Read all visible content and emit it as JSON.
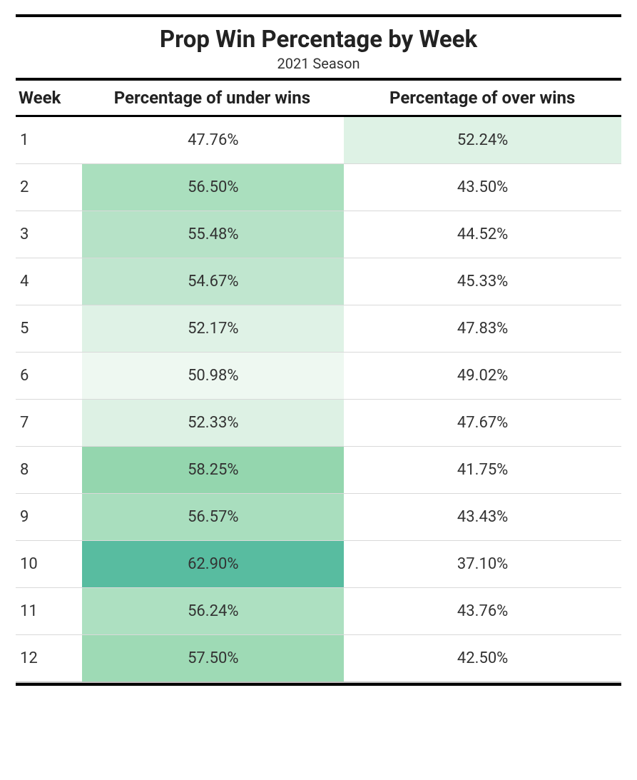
{
  "title": "Prop Win Percentage by Week",
  "subtitle": "2021 Season",
  "columns": {
    "week": "Week",
    "under": "Percentage of under wins",
    "over": "Percentage of over wins"
  },
  "heat_palette_note": "cells shaded green when >50%, deeper teal as value rises",
  "colors": {
    "text": "#333333",
    "border_strong": "#000000",
    "border_row": "#d9d9d9",
    "border_bottom": "#bdbdbd",
    "background": "#ffffff"
  },
  "cell_colors_sampled": {
    "47.76": "#ffffff",
    "50.98": "#eef8f1",
    "52.17": "#dff2e6",
    "52.24": "#def2e5",
    "52.33": "#ddf1e4",
    "54.67": "#c0e6cf",
    "55.48": "#b6e2c7",
    "56.24": "#ade0c1",
    "56.50": "#aadfbe",
    "56.57": "#a9debe",
    "57.50": "#9edab5",
    "58.25": "#94d6ae",
    "62.90": "#58bca0"
  },
  "rows": [
    {
      "week": "1",
      "under": "47.76%",
      "over": "52.24%",
      "under_bg": "#ffffff",
      "over_bg": "#def2e5"
    },
    {
      "week": "2",
      "under": "56.50%",
      "over": "43.50%",
      "under_bg": "#aadfbe",
      "over_bg": "#ffffff"
    },
    {
      "week": "3",
      "under": "55.48%",
      "over": "44.52%",
      "under_bg": "#b6e2c7",
      "over_bg": "#ffffff"
    },
    {
      "week": "4",
      "under": "54.67%",
      "over": "45.33%",
      "under_bg": "#c0e6cf",
      "over_bg": "#ffffff"
    },
    {
      "week": "5",
      "under": "52.17%",
      "over": "47.83%",
      "under_bg": "#dff2e6",
      "over_bg": "#ffffff"
    },
    {
      "week": "6",
      "under": "50.98%",
      "over": "49.02%",
      "under_bg": "#eef8f1",
      "over_bg": "#ffffff"
    },
    {
      "week": "7",
      "under": "52.33%",
      "over": "47.67%",
      "under_bg": "#ddf1e4",
      "over_bg": "#ffffff"
    },
    {
      "week": "8",
      "under": "58.25%",
      "over": "41.75%",
      "under_bg": "#94d6ae",
      "over_bg": "#ffffff"
    },
    {
      "week": "9",
      "under": "56.57%",
      "over": "43.43%",
      "under_bg": "#a9debe",
      "over_bg": "#ffffff"
    },
    {
      "week": "10",
      "under": "62.90%",
      "over": "37.10%",
      "under_bg": "#58bca0",
      "over_bg": "#ffffff"
    },
    {
      "week": "11",
      "under": "56.24%",
      "over": "43.76%",
      "under_bg": "#ade0c1",
      "over_bg": "#ffffff"
    },
    {
      "week": "12",
      "under": "57.50%",
      "over": "42.50%",
      "under_bg": "#9edab5",
      "over_bg": "#ffffff"
    }
  ]
}
